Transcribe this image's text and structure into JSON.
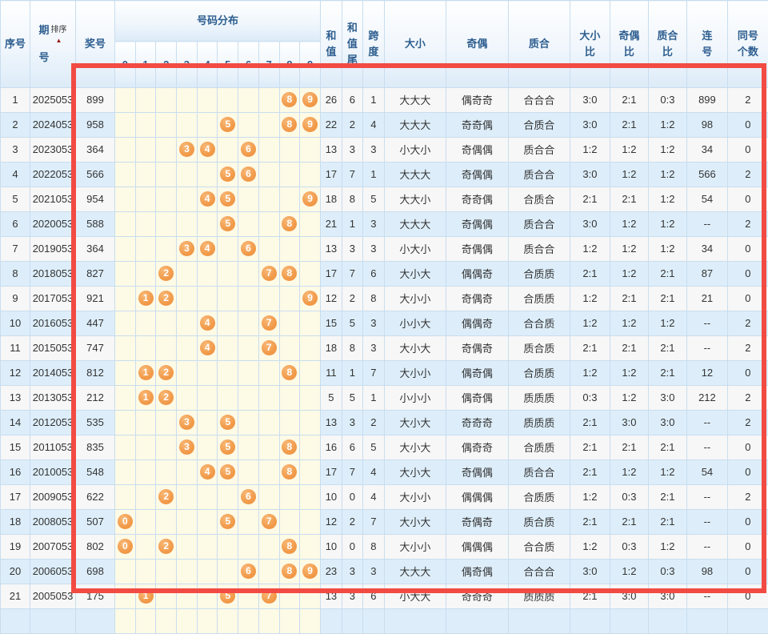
{
  "colors": {
    "header_text": "#2d5e8f",
    "data_text": "#333333",
    "ball_orange": "#ef9340",
    "highlight_red": "#f24b43",
    "row_alt_blue": "#ddeefa",
    "distribution_yellow": "#fdfae6"
  },
  "header": {
    "seq": "序号",
    "period": "期\n号",
    "sort_label": "排序",
    "sort_arrow": "▲",
    "number": "奖号",
    "distribution": "号码分布",
    "digits": [
      "0",
      "1",
      "2",
      "3",
      "4",
      "5",
      "6",
      "7",
      "8",
      "9"
    ],
    "sum": "和\n值",
    "sum_tail": "和\n值\n尾",
    "span": "跨\n度",
    "size": "大小",
    "parity": "奇偶",
    "prime": "质合",
    "size_ratio": "大小\n比",
    "parity_ratio": "奇偶\n比",
    "prime_ratio": "质合\n比",
    "consecutive": "连\n号",
    "same_count": "同号\n个数"
  },
  "rows": [
    {
      "seq": "1",
      "period": "2025053",
      "number": "899",
      "balls": [
        8,
        9
      ],
      "sum": "26",
      "tail": "6",
      "span": "1",
      "size": "大大大",
      "parity": "偶奇奇",
      "prime": "合合合",
      "size_ratio": "3:0",
      "parity_ratio": "2:1",
      "prime_ratio": "0:3",
      "consec": "899",
      "same": "2"
    },
    {
      "seq": "2",
      "period": "2024053",
      "number": "958",
      "balls": [
        5,
        8,
        9
      ],
      "sum": "22",
      "tail": "2",
      "span": "4",
      "size": "大大大",
      "parity": "奇奇偶",
      "prime": "合质合",
      "size_ratio": "3:0",
      "parity_ratio": "2:1",
      "prime_ratio": "1:2",
      "consec": "98",
      "same": "0"
    },
    {
      "seq": "3",
      "period": "2023053",
      "number": "364",
      "balls": [
        3,
        4,
        6
      ],
      "sum": "13",
      "tail": "3",
      "span": "3",
      "size": "小大小",
      "parity": "奇偶偶",
      "prime": "质合合",
      "size_ratio": "1:2",
      "parity_ratio": "1:2",
      "prime_ratio": "1:2",
      "consec": "34",
      "same": "0"
    },
    {
      "seq": "4",
      "period": "2022053",
      "number": "566",
      "balls": [
        5,
        6
      ],
      "sum": "17",
      "tail": "7",
      "span": "1",
      "size": "大大大",
      "parity": "奇偶偶",
      "prime": "质合合",
      "size_ratio": "3:0",
      "parity_ratio": "1:2",
      "prime_ratio": "1:2",
      "consec": "566",
      "same": "2"
    },
    {
      "seq": "5",
      "period": "2021053",
      "number": "954",
      "balls": [
        4,
        5,
        9
      ],
      "sum": "18",
      "tail": "8",
      "span": "5",
      "size": "大大小",
      "parity": "奇奇偶",
      "prime": "合质合",
      "size_ratio": "2:1",
      "parity_ratio": "2:1",
      "prime_ratio": "1:2",
      "consec": "54",
      "same": "0"
    },
    {
      "seq": "6",
      "period": "2020053",
      "number": "588",
      "balls": [
        5,
        8
      ],
      "sum": "21",
      "tail": "1",
      "span": "3",
      "size": "大大大",
      "parity": "奇偶偶",
      "prime": "质合合",
      "size_ratio": "3:0",
      "parity_ratio": "1:2",
      "prime_ratio": "1:2",
      "consec": "--",
      "same": "2"
    },
    {
      "seq": "7",
      "period": "2019053",
      "number": "364",
      "balls": [
        3,
        4,
        6
      ],
      "sum": "13",
      "tail": "3",
      "span": "3",
      "size": "小大小",
      "parity": "奇偶偶",
      "prime": "质合合",
      "size_ratio": "1:2",
      "parity_ratio": "1:2",
      "prime_ratio": "1:2",
      "consec": "34",
      "same": "0"
    },
    {
      "seq": "8",
      "period": "2018053",
      "number": "827",
      "balls": [
        2,
        7,
        8
      ],
      "sum": "17",
      "tail": "7",
      "span": "6",
      "size": "大小大",
      "parity": "偶偶奇",
      "prime": "合质质",
      "size_ratio": "2:1",
      "parity_ratio": "1:2",
      "prime_ratio": "2:1",
      "consec": "87",
      "same": "0"
    },
    {
      "seq": "9",
      "period": "2017053",
      "number": "921",
      "balls": [
        1,
        2,
        9
      ],
      "sum": "12",
      "tail": "2",
      "span": "8",
      "size": "大小小",
      "parity": "奇偶奇",
      "prime": "合质质",
      "size_ratio": "1:2",
      "parity_ratio": "2:1",
      "prime_ratio": "2:1",
      "consec": "21",
      "same": "0"
    },
    {
      "seq": "10",
      "period": "2016053",
      "number": "447",
      "balls": [
        4,
        7
      ],
      "sum": "15",
      "tail": "5",
      "span": "3",
      "size": "小小大",
      "parity": "偶偶奇",
      "prime": "合合质",
      "size_ratio": "1:2",
      "parity_ratio": "1:2",
      "prime_ratio": "1:2",
      "consec": "--",
      "same": "2"
    },
    {
      "seq": "11",
      "period": "2015053",
      "number": "747",
      "balls": [
        4,
        7
      ],
      "sum": "18",
      "tail": "8",
      "span": "3",
      "size": "大小大",
      "parity": "奇偶奇",
      "prime": "质合质",
      "size_ratio": "2:1",
      "parity_ratio": "2:1",
      "prime_ratio": "2:1",
      "consec": "--",
      "same": "2"
    },
    {
      "seq": "12",
      "period": "2014053",
      "number": "812",
      "balls": [
        1,
        2,
        8
      ],
      "sum": "11",
      "tail": "1",
      "span": "7",
      "size": "大小小",
      "parity": "偶奇偶",
      "prime": "合质质",
      "size_ratio": "1:2",
      "parity_ratio": "1:2",
      "prime_ratio": "2:1",
      "consec": "12",
      "same": "0"
    },
    {
      "seq": "13",
      "period": "2013053",
      "number": "212",
      "balls": [
        1,
        2
      ],
      "sum": "5",
      "tail": "5",
      "span": "1",
      "size": "小小小",
      "parity": "偶奇偶",
      "prime": "质质质",
      "size_ratio": "0:3",
      "parity_ratio": "1:2",
      "prime_ratio": "3:0",
      "consec": "212",
      "same": "2"
    },
    {
      "seq": "14",
      "period": "2012053",
      "number": "535",
      "balls": [
        3,
        5
      ],
      "sum": "13",
      "tail": "3",
      "span": "2",
      "size": "大小大",
      "parity": "奇奇奇",
      "prime": "质质质",
      "size_ratio": "2:1",
      "parity_ratio": "3:0",
      "prime_ratio": "3:0",
      "consec": "--",
      "same": "2"
    },
    {
      "seq": "15",
      "period": "2011053",
      "number": "835",
      "balls": [
        3,
        5,
        8
      ],
      "sum": "16",
      "tail": "6",
      "span": "5",
      "size": "大小大",
      "parity": "偶奇奇",
      "prime": "合质质",
      "size_ratio": "2:1",
      "parity_ratio": "2:1",
      "prime_ratio": "2:1",
      "consec": "--",
      "same": "0"
    },
    {
      "seq": "16",
      "period": "2010053",
      "number": "548",
      "balls": [
        4,
        5,
        8
      ],
      "sum": "17",
      "tail": "7",
      "span": "4",
      "size": "大小大",
      "parity": "奇偶偶",
      "prime": "质合合",
      "size_ratio": "2:1",
      "parity_ratio": "1:2",
      "prime_ratio": "1:2",
      "consec": "54",
      "same": "0"
    },
    {
      "seq": "17",
      "period": "2009053",
      "number": "622",
      "balls": [
        2,
        6
      ],
      "sum": "10",
      "tail": "0",
      "span": "4",
      "size": "大小小",
      "parity": "偶偶偶",
      "prime": "合质质",
      "size_ratio": "1:2",
      "parity_ratio": "0:3",
      "prime_ratio": "2:1",
      "consec": "--",
      "same": "2"
    },
    {
      "seq": "18",
      "period": "2008053",
      "number": "507",
      "balls": [
        0,
        5,
        7
      ],
      "sum": "12",
      "tail": "2",
      "span": "7",
      "size": "大小大",
      "parity": "奇偶奇",
      "prime": "质合质",
      "size_ratio": "2:1",
      "parity_ratio": "2:1",
      "prime_ratio": "2:1",
      "consec": "--",
      "same": "0"
    },
    {
      "seq": "19",
      "period": "2007053",
      "number": "802",
      "balls": [
        0,
        2,
        8
      ],
      "sum": "10",
      "tail": "0",
      "span": "8",
      "size": "大小小",
      "parity": "偶偶偶",
      "prime": "合合质",
      "size_ratio": "1:2",
      "parity_ratio": "0:3",
      "prime_ratio": "1:2",
      "consec": "--",
      "same": "0"
    },
    {
      "seq": "20",
      "period": "2006053",
      "number": "698",
      "balls": [
        6,
        8,
        9
      ],
      "sum": "23",
      "tail": "3",
      "span": "3",
      "size": "大大大",
      "parity": "偶奇偶",
      "prime": "合合合",
      "size_ratio": "3:0",
      "parity_ratio": "1:2",
      "prime_ratio": "0:3",
      "consec": "98",
      "same": "0"
    },
    {
      "seq": "21",
      "period": "2005053",
      "number": "175",
      "balls": [
        1,
        5,
        7
      ],
      "sum": "13",
      "tail": "3",
      "span": "6",
      "size": "小大大",
      "parity": "奇奇奇",
      "prime": "质质质",
      "size_ratio": "2:1",
      "parity_ratio": "3:0",
      "prime_ratio": "3:0",
      "consec": "--",
      "same": "0"
    }
  ]
}
